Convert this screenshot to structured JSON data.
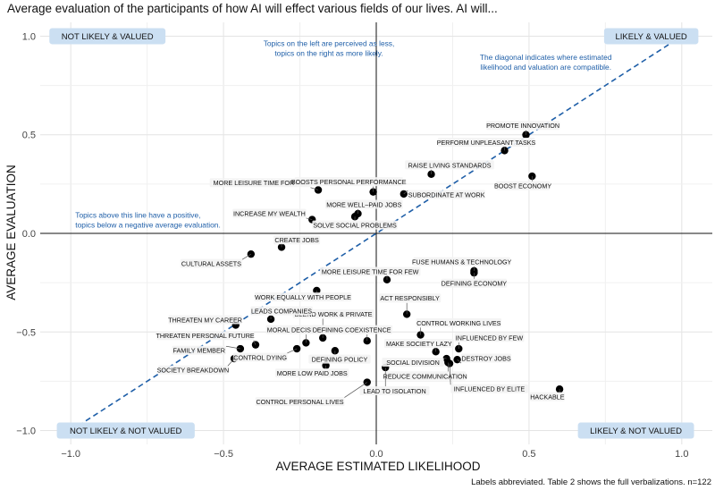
{
  "chart_data": {
    "type": "scatter",
    "title": "Average evaluation of the participants of how AI will effect various fields of our lives. AI will...",
    "xlabel": "AVERAGE ESTIMATED LIKELIHOOD",
    "ylabel": "AVERAGE EVALUATION",
    "xlim": [
      -1.1,
      1.1
    ],
    "ylim": [
      -1.07,
      1.07
    ],
    "x_ticks": [
      -1.0,
      -0.5,
      0.0,
      0.5,
      1.0
    ],
    "y_ticks": [
      -1.0,
      -0.5,
      0.0,
      0.5,
      1.0
    ],
    "x_tick_labels": [
      "−1.0",
      "−0.5",
      "0.0",
      "0.5",
      "1.0"
    ],
    "y_tick_labels": [
      "−1.0",
      "−0.5",
      "0.0",
      "0.5",
      "1.0"
    ],
    "grid": true,
    "diagonal": {
      "from": [
        -1,
        -1
      ],
      "to": [
        1,
        1
      ],
      "color": "#1f5fa8"
    },
    "corner_labels": [
      {
        "text": "NOT LIKELY & VALUED",
        "x": -0.88,
        "y": 1.0
      },
      {
        "text": "LIKELY & VALUED",
        "x": 0.9,
        "y": 1.0
      },
      {
        "text": "NOT LIKELY & NOT VALUED",
        "x": -0.82,
        "y": -1.0
      },
      {
        "text": "LIKELY & NOT VALUED",
        "x": 0.85,
        "y": -1.0
      }
    ],
    "annotations": [
      {
        "lines": [
          "Topics on the left are perceived as less,",
          "topics on the right as more likely."
        ],
        "x": -0.155,
        "y": 0.95,
        "anchor": "middle"
      },
      {
        "lines": [
          "The diagonal indicates where estimated",
          "likelihood and valuation are compatible."
        ],
        "x": 0.555,
        "y": 0.88,
        "anchor": "middle"
      },
      {
        "lines": [
          "Topics above this line have a positive,",
          "topics below a negative average evaluation."
        ],
        "x": -0.985,
        "y": 0.08,
        "anchor": "start"
      }
    ],
    "points": [
      {
        "label": "PROMOTE INNOVATION",
        "x": 0.49,
        "y": 0.5,
        "lx": 0.48,
        "ly": 0.545
      },
      {
        "label": "PERFORM UNPLEASANT TASKS",
        "x": 0.42,
        "y": 0.42,
        "lx": 0.36,
        "ly": 0.46
      },
      {
        "label": "RAISE LIVING STANDARDS",
        "x": 0.18,
        "y": 0.3,
        "lx": 0.24,
        "ly": 0.345
      },
      {
        "label": "BOOST ECONOMY",
        "x": 0.51,
        "y": 0.29,
        "lx": 0.48,
        "ly": 0.24
      },
      {
        "label": "MORE LEISURE TIME FOR ALL",
        "x": -0.19,
        "y": 0.22,
        "lx": -0.38,
        "ly": 0.255
      },
      {
        "label": "BOOSTS PERSONAL PERFORMANCE",
        "x": -0.01,
        "y": 0.21,
        "lx": -0.09,
        "ly": 0.26
      },
      {
        "label": "SUBORDINATE AT WORK",
        "x": 0.09,
        "y": 0.2,
        "lx": 0.23,
        "ly": 0.195
      },
      {
        "label": "MORE WELL–PAID JOBS",
        "x": -0.06,
        "y": 0.1,
        "lx": -0.04,
        "ly": 0.145
      },
      {
        "label": "INCREASE MY WEALTH",
        "x": -0.21,
        "y": 0.07,
        "lx": -0.35,
        "ly": 0.1
      },
      {
        "label": "SOLVE SOCIAL PROBLEMS",
        "x": -0.07,
        "y": 0.085,
        "lx": -0.07,
        "ly": 0.04
      },
      {
        "label": "CREATE JOBS",
        "x": -0.31,
        "y": -0.07,
        "lx": -0.26,
        "ly": -0.035
      },
      {
        "label": "CULTURAL ASSETS",
        "x": -0.41,
        "y": -0.105,
        "lx": -0.54,
        "ly": -0.155
      },
      {
        "label": "FUSE HUMANS & TECHNOLOGY",
        "x": 0.32,
        "y": -0.19,
        "lx": 0.28,
        "ly": -0.145
      },
      {
        "label": "DEFINING ECONOMY",
        "x": 0.32,
        "y": -0.2,
        "lx": 0.32,
        "ly": -0.255
      },
      {
        "label": "MORE LEISURE TIME FOR FEW",
        "x": 0.035,
        "y": -0.235,
        "lx": -0.02,
        "ly": -0.195
      },
      {
        "label": "WORK EQUALLY WITH PEOPLE",
        "x": -0.195,
        "y": -0.29,
        "lx": -0.24,
        "ly": -0.325
      },
      {
        "label": "ACT RESPONSIBLY",
        "x": 0.1,
        "y": -0.41,
        "lx": 0.11,
        "ly": -0.33
      },
      {
        "label": "BLEND WORK & PRIVATE",
        "x": -0.175,
        "y": -0.53,
        "lx": -0.14,
        "ly": -0.41
      },
      {
        "label": "LEADS COMPANIES",
        "x": -0.345,
        "y": -0.435,
        "lx": -0.31,
        "ly": -0.395
      },
      {
        "label": "THREATEN MY CAREER",
        "x": -0.46,
        "y": -0.465,
        "lx": -0.56,
        "ly": -0.44
      },
      {
        "label": "MORAL DECISIONS",
        "x": -0.23,
        "y": -0.555,
        "lx": -0.26,
        "ly": -0.49
      },
      {
        "label": "DEFINING COEXISTENCE",
        "x": -0.03,
        "y": -0.545,
        "lx": -0.08,
        "ly": -0.49
      },
      {
        "label": "CONTROL WORKING LIVES",
        "x": 0.145,
        "y": -0.515,
        "lx": 0.27,
        "ly": -0.455
      },
      {
        "label": "THREATEN PERSONAL FUTURE",
        "x": -0.395,
        "y": -0.565,
        "lx": -0.56,
        "ly": -0.52
      },
      {
        "label": "FAMILY MEMBER",
        "x": -0.445,
        "y": -0.585,
        "lx": -0.58,
        "ly": -0.595
      },
      {
        "label": "CONTROL DYING",
        "x": -0.26,
        "y": -0.585,
        "lx": -0.38,
        "ly": -0.63
      },
      {
        "label": "SOCIETY BREAKDOWN",
        "x": -0.465,
        "y": -0.635,
        "lx": -0.6,
        "ly": -0.695
      },
      {
        "label": "DEFINING POLICY",
        "x": -0.135,
        "y": -0.595,
        "lx": -0.12,
        "ly": -0.64
      },
      {
        "label": "MAKE SOCIETY LAZY",
        "x": 0.195,
        "y": -0.6,
        "lx": 0.14,
        "ly": -0.56
      },
      {
        "label": "INFLUENCED BY FEW",
        "x": 0.27,
        "y": -0.585,
        "lx": 0.37,
        "ly": -0.53
      },
      {
        "label": "SOCIAL DIVISION",
        "x": 0.23,
        "y": -0.635,
        "lx": 0.12,
        "ly": -0.655
      },
      {
        "label": "DESTROY JOBS",
        "x": 0.265,
        "y": -0.64,
        "lx": 0.36,
        "ly": -0.635
      },
      {
        "label": "MORE LOW PAID JOBS",
        "x": -0.165,
        "y": -0.67,
        "lx": -0.21,
        "ly": -0.71
      },
      {
        "label": "REDUCE COMMUNICATION",
        "x": 0.235,
        "y": -0.655,
        "lx": 0.16,
        "ly": -0.725
      },
      {
        "label": "LEAD TO ISOLATION",
        "x": 0.03,
        "y": -0.68,
        "lx": 0.06,
        "ly": -0.8
      },
      {
        "label": "INFLUENCED BY ELITE",
        "x": 0.24,
        "y": -0.66,
        "lx": 0.37,
        "ly": -0.79
      },
      {
        "label": "HACKABLE",
        "x": 0.6,
        "y": -0.79,
        "lx": 0.56,
        "ly": -0.83
      },
      {
        "label": "CONTROL PERSONAL LIVES",
        "x": -0.03,
        "y": -0.755,
        "lx": -0.25,
        "ly": -0.855
      }
    ],
    "caption": "Labels abbreviated. Table 2 shows the full verbalizations. n=122"
  }
}
